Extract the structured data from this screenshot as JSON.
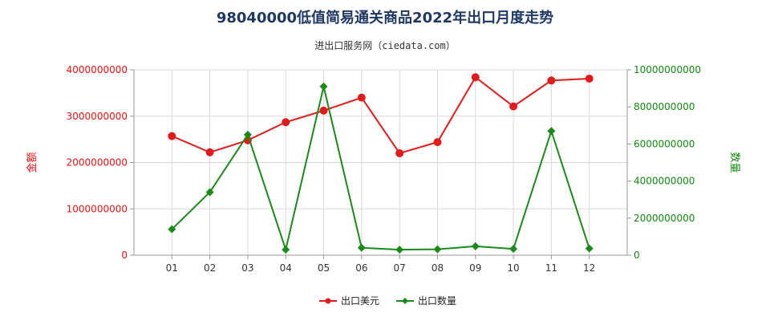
{
  "chart_data": {
    "type": "line",
    "title": "98040000低值简易通关商品2022年出口月度走势",
    "subtitle": "进出口服务网（ciedata.com）",
    "categories": [
      "01",
      "02",
      "03",
      "04",
      "05",
      "06",
      "07",
      "08",
      "09",
      "10",
      "11",
      "12"
    ],
    "y_left": {
      "label": "金额",
      "ticks": [
        "0",
        "1000000000",
        "2000000000",
        "3000000000",
        "4000000000"
      ],
      "range": [
        0,
        4000000000
      ],
      "color": "#ee1111"
    },
    "y_right": {
      "label": "数量",
      "ticks": [
        "0",
        "2000000000",
        "4000000000",
        "6000000000",
        "8000000000",
        "10000000000"
      ],
      "range": [
        0,
        10000000000
      ],
      "color": "#118811"
    },
    "series": [
      {
        "name": "出口美元",
        "axis": "left",
        "color": "#e31a1c",
        "marker": "circle",
        "values": [
          2570000000,
          2220000000,
          2480000000,
          2870000000,
          3120000000,
          3400000000,
          2200000000,
          2440000000,
          3840000000,
          3210000000,
          3770000000,
          3810000000
        ]
      },
      {
        "name": "出口数量",
        "axis": "right",
        "color": "#1a8a1a",
        "marker": "diamond",
        "values": [
          1400000000,
          3400000000,
          6500000000,
          300000000,
          9100000000,
          400000000,
          300000000,
          320000000,
          480000000,
          340000000,
          6700000000,
          360000000
        ]
      }
    ],
    "grid": true,
    "legend_position": "bottom"
  }
}
